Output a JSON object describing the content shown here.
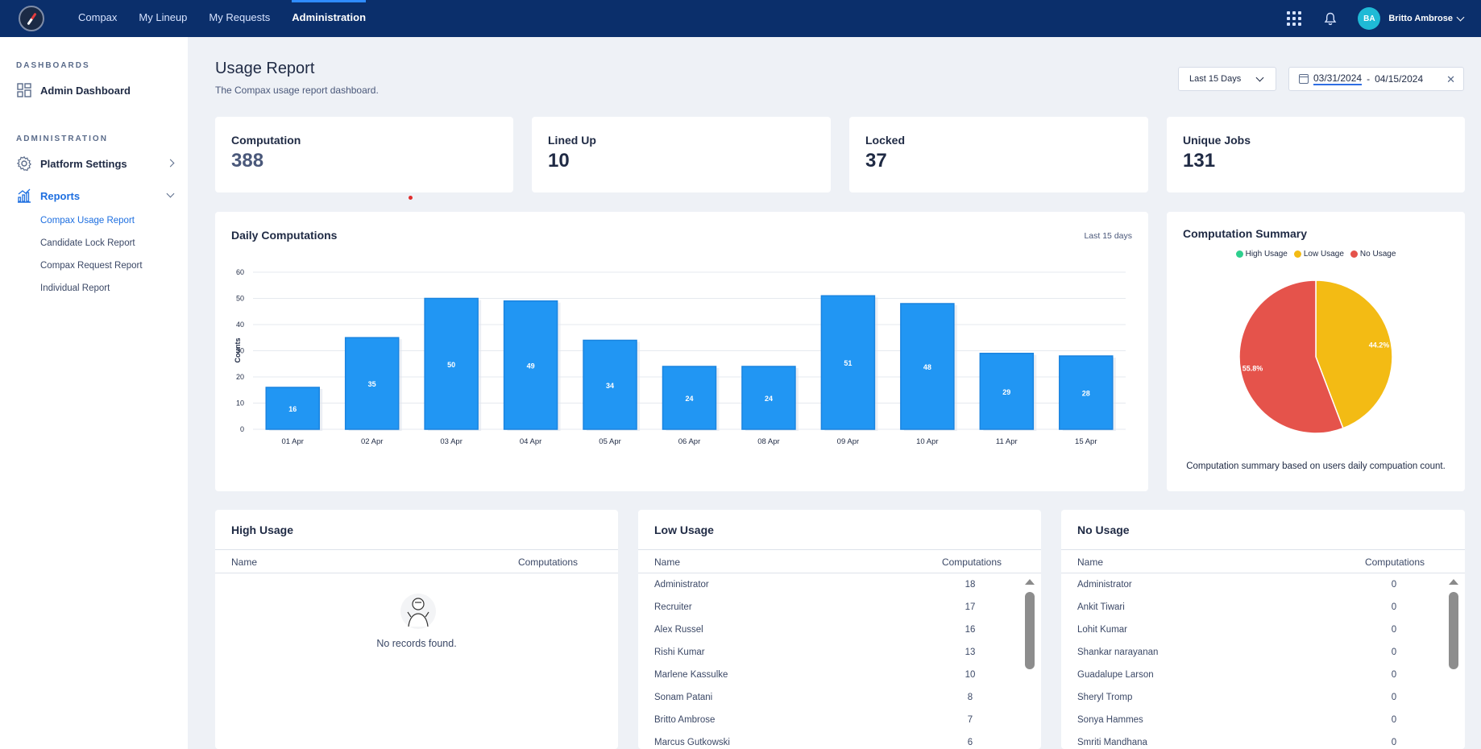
{
  "nav": {
    "items": [
      {
        "label": "Compax"
      },
      {
        "label": "My Lineup"
      },
      {
        "label": "My Requests"
      },
      {
        "label": "Administration"
      }
    ],
    "user_initials": "BA",
    "user_name": "Britto Ambrose"
  },
  "sidebar": {
    "dashboards_heading": "DASHBOARDS",
    "admin_dashboard": "Admin Dashboard",
    "administration_heading": "ADMINISTRATION",
    "platform_settings": "Platform Settings",
    "reports": "Reports",
    "report_items": [
      "Compax Usage Report",
      "Candidate Lock Report",
      "Compax Request Report",
      "Individual Report"
    ]
  },
  "header": {
    "title": "Usage Report",
    "subtitle": "The Compax usage report dashboard.",
    "range_select": "Last 15 Days",
    "date_start": "03/31/2024",
    "date_sep": "-",
    "date_end": "04/15/2024"
  },
  "stats": [
    {
      "label": "Computation",
      "value": "388"
    },
    {
      "label": "Lined Up",
      "value": "10"
    },
    {
      "label": "Locked",
      "value": "37"
    },
    {
      "label": "Unique Jobs",
      "value": "131"
    }
  ],
  "daily": {
    "title": "Daily Computations",
    "note": "Last 15 days"
  },
  "summary": {
    "title": "Computation Summary",
    "caption": "Computation summary based on users daily compuation count."
  },
  "chart_data": [
    {
      "type": "bar",
      "title": "Daily Computations",
      "categories": [
        "01 Apr",
        "02 Apr",
        "03 Apr",
        "04 Apr",
        "05 Apr",
        "06 Apr",
        "08 Apr",
        "09 Apr",
        "10 Apr",
        "11 Apr",
        "15 Apr"
      ],
      "values": [
        16,
        35,
        50,
        49,
        34,
        24,
        24,
        51,
        48,
        29,
        28
      ],
      "ylabel": "Counts",
      "yticks": [
        0,
        10,
        20,
        30,
        40,
        50,
        60
      ],
      "ylim": [
        0,
        60
      ],
      "grid": true,
      "color": "#2196f3"
    },
    {
      "type": "pie",
      "title": "Computation Summary",
      "labels": [
        "High Usage",
        "Low Usage",
        "No Usage"
      ],
      "values": [
        0,
        44.2,
        55.8
      ],
      "display_labels": [
        "",
        "44.2%",
        "55.8%"
      ],
      "colors": [
        "#2ecf8e",
        "#f3bb14",
        "#e5534b"
      ],
      "legend": "top"
    }
  ],
  "tables": {
    "name_header": "Name",
    "value_header": "Computations",
    "high": {
      "title": "High Usage",
      "empty_text": "No records found."
    },
    "low": {
      "title": "Low Usage",
      "rows": [
        {
          "name": "Administrator",
          "value": "18"
        },
        {
          "name": "Recruiter",
          "value": "17"
        },
        {
          "name": "Alex Russel",
          "value": "16"
        },
        {
          "name": "Rishi Kumar",
          "value": "13"
        },
        {
          "name": "Marlene Kassulke",
          "value": "10"
        },
        {
          "name": "Sonam Patani",
          "value": "8"
        },
        {
          "name": "Britto Ambrose",
          "value": "7"
        },
        {
          "name": "Marcus Gutkowski",
          "value": "6"
        }
      ]
    },
    "none": {
      "title": "No Usage",
      "rows": [
        {
          "name": "Administrator",
          "value": "0"
        },
        {
          "name": "Ankit Tiwari",
          "value": "0"
        },
        {
          "name": "Lohit Kumar",
          "value": "0"
        },
        {
          "name": "Shankar narayanan",
          "value": "0"
        },
        {
          "name": "Guadalupe Larson",
          "value": "0"
        },
        {
          "name": "Sheryl Tromp",
          "value": "0"
        },
        {
          "name": "Sonya Hammes",
          "value": "0"
        },
        {
          "name": "Smriti Mandhana",
          "value": "0"
        }
      ]
    }
  }
}
